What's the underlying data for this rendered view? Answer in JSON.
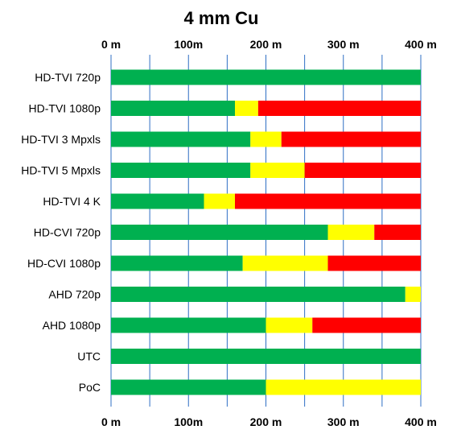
{
  "chart_data": {
    "type": "bar",
    "orientation": "horizontal",
    "stacked": true,
    "title": "4 mm Cu",
    "xlabel": "",
    "ylabel": "",
    "xlim": [
      0,
      400
    ],
    "x_ticks": [
      {
        "value": 0,
        "label": "0 m"
      },
      {
        "value": 100,
        "label": "100m"
      },
      {
        "value": 200,
        "label": "200 m"
      },
      {
        "value": 300,
        "label": "300 m"
      },
      {
        "value": 400,
        "label": "400 m"
      }
    ],
    "gridlines_at": [
      0,
      50,
      100,
      150,
      200,
      250,
      300,
      350,
      400
    ],
    "grid": true,
    "tick_labels_top_and_bottom": true,
    "legend": "none",
    "categories": [
      "HD-TVI 720p",
      "HD-TVI 1080p",
      "HD-TVI 3 Mpxls",
      "HD-TVI 5 Mpxls",
      "HD-TVI 4 K",
      "HD-CVI 720p",
      "HD-CVI 1080p",
      "AHD 720p",
      "AHD 1080p",
      "UTC",
      "PoC"
    ],
    "series": [
      {
        "color": "#00b050",
        "values": [
          400,
          160,
          180,
          180,
          120,
          280,
          170,
          380,
          200,
          400,
          200
        ]
      },
      {
        "color": "#ffff00",
        "values": [
          0,
          30,
          40,
          70,
          40,
          60,
          110,
          20,
          60,
          0,
          200
        ]
      },
      {
        "color": "#ff0000",
        "values": [
          0,
          210,
          180,
          150,
          240,
          60,
          120,
          0,
          140,
          0,
          0
        ]
      }
    ]
  }
}
